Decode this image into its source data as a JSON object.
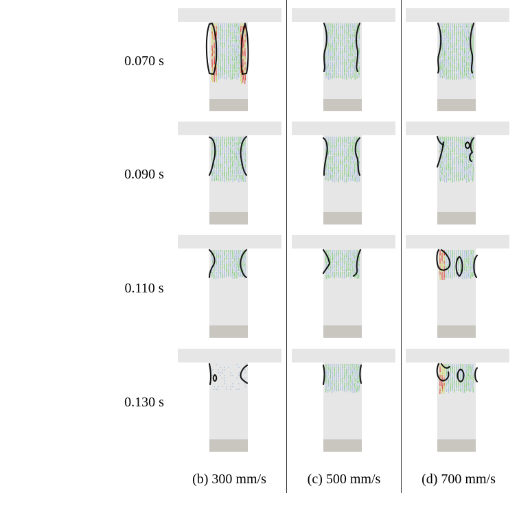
{
  "rows": [
    {
      "time": "0.070 s"
    },
    {
      "time": "0.090 s"
    },
    {
      "time": "0.110 s"
    },
    {
      "time": "0.130 s"
    }
  ],
  "columns": [
    {
      "label": "(b) 300 mm/s"
    },
    {
      "label": "(c) 500 mm/s"
    },
    {
      "label": "(d) 700 mm/s"
    }
  ],
  "colors": {
    "plate": "#e6e6e6",
    "bottom_block": "#c9c6c0",
    "contour": "#111111",
    "vector_low": "#6cc46a",
    "vector_mid": "#c9d24a",
    "vector_high": "#d62a1e",
    "vector_faint": "#9ab8d8"
  }
}
